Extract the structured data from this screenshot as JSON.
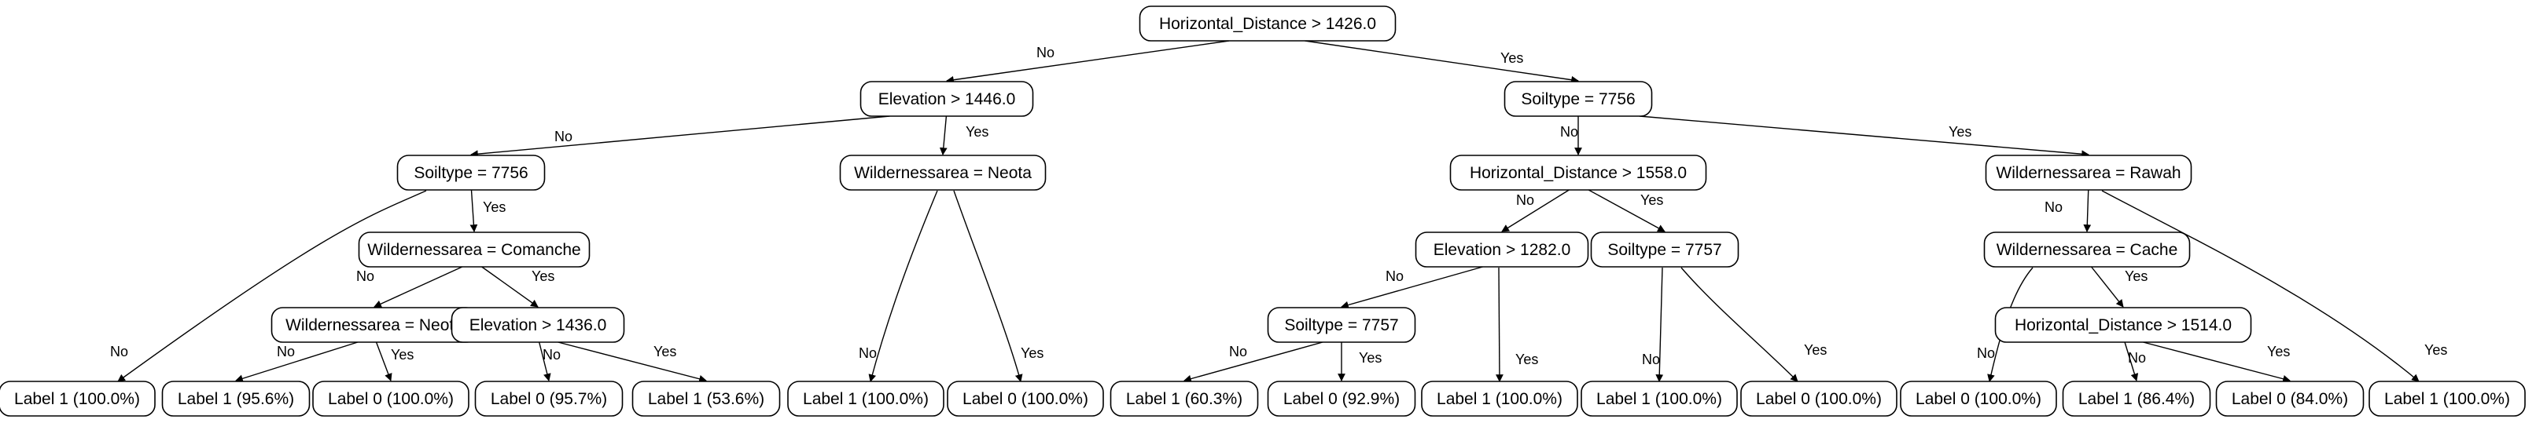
{
  "diagram": {
    "type": "decision-tree",
    "nodes": {
      "root": "Horizontal_Distance > 1426.0",
      "n_elev_1446": "Elevation > 1446.0",
      "n_soil_7756_a": "Soiltype = 7756",
      "n_wild_comanche": "Wildernessarea = Comanche",
      "n_wild_neota_a": "Wildernessarea = Neota",
      "n_elev_1436": "Elevation > 1436.0",
      "n_wild_neota_b": "Wildernessarea = Neota",
      "n_soil_7756_b": "Soiltype = 7756",
      "n_hdist_1558": "Horizontal_Distance > 1558.0",
      "n_elev_1282": "Elevation > 1282.0",
      "n_soil_7757_a": "Soiltype = 7757",
      "n_soil_7757_b": "Soiltype = 7757",
      "n_wild_rawah": "Wildernessarea = Rawah",
      "n_wild_cache": "Wildernessarea = Cache",
      "n_hdist_1514": "Horizontal_Distance > 1514.0",
      "leaf1": "Label 1 (100.0%)",
      "leaf2": "Label 1 (95.6%)",
      "leaf3": "Label 0 (100.0%)",
      "leaf4": "Label 0 (95.7%)",
      "leaf5": "Label 1 (53.6%)",
      "leaf6": "Label 1 (100.0%)",
      "leaf7": "Label 0 (100.0%)",
      "leaf8": "Label 1 (60.3%)",
      "leaf9": "Label 0 (92.9%)",
      "leaf10": "Label 1 (100.0%)",
      "leaf11": "Label 1 (100.0%)",
      "leaf12": "Label 0 (100.0%)",
      "leaf13": "Label 0 (100.0%)",
      "leaf14": "Label 1 (86.4%)",
      "leaf15": "Label 0 (84.0%)",
      "leaf16": "Label 1 (100.0%)"
    },
    "edge_labels": {
      "no": "No",
      "yes": "Yes"
    },
    "edges": [
      {
        "from": "root",
        "to": "n_elev_1446",
        "label": "No"
      },
      {
        "from": "root",
        "to": "n_soil_7756_b",
        "label": "Yes"
      },
      {
        "from": "n_elev_1446",
        "to": "n_soil_7756_a",
        "label": "No"
      },
      {
        "from": "n_elev_1446",
        "to": "n_wild_neota_b",
        "label": "Yes"
      },
      {
        "from": "n_soil_7756_a",
        "to": "leaf1",
        "label": "No"
      },
      {
        "from": "n_soil_7756_a",
        "to": "n_wild_comanche",
        "label": "Yes"
      },
      {
        "from": "n_wild_comanche",
        "to": "n_wild_neota_a",
        "label": "No"
      },
      {
        "from": "n_wild_comanche",
        "to": "n_elev_1436",
        "label": "Yes"
      },
      {
        "from": "n_wild_neota_a",
        "to": "leaf2",
        "label": "No"
      },
      {
        "from": "n_wild_neota_a",
        "to": "leaf3",
        "label": "Yes"
      },
      {
        "from": "n_elev_1436",
        "to": "leaf4",
        "label": "No"
      },
      {
        "from": "n_elev_1436",
        "to": "leaf5",
        "label": "Yes"
      },
      {
        "from": "n_wild_neota_b",
        "to": "leaf6",
        "label": "No"
      },
      {
        "from": "n_wild_neota_b",
        "to": "leaf7",
        "label": "Yes"
      },
      {
        "from": "n_soil_7756_b",
        "to": "n_hdist_1558",
        "label": "No"
      },
      {
        "from": "n_soil_7756_b",
        "to": "n_wild_rawah",
        "label": "Yes"
      },
      {
        "from": "n_hdist_1558",
        "to": "n_elev_1282",
        "label": "No"
      },
      {
        "from": "n_hdist_1558",
        "to": "n_soil_7757_b",
        "label": "Yes"
      },
      {
        "from": "n_elev_1282",
        "to": "n_soil_7757_a",
        "label": "No"
      },
      {
        "from": "n_elev_1282",
        "to": "leaf10",
        "label": "Yes"
      },
      {
        "from": "n_soil_7757_a",
        "to": "leaf8",
        "label": "No"
      },
      {
        "from": "n_soil_7757_a",
        "to": "leaf9",
        "label": "Yes"
      },
      {
        "from": "n_soil_7757_b",
        "to": "leaf11",
        "label": "No"
      },
      {
        "from": "n_soil_7757_b",
        "to": "leaf12",
        "label": "Yes"
      },
      {
        "from": "n_wild_rawah",
        "to": "n_wild_cache",
        "label": "No"
      },
      {
        "from": "n_wild_rawah",
        "to": "leaf16",
        "label": "Yes"
      },
      {
        "from": "n_wild_cache",
        "to": "leaf13",
        "label": "No"
      },
      {
        "from": "n_wild_cache",
        "to": "n_hdist_1514",
        "label": "Yes"
      },
      {
        "from": "n_hdist_1514",
        "to": "leaf14",
        "label": "No"
      },
      {
        "from": "n_hdist_1514",
        "to": "leaf15",
        "label": "Yes"
      }
    ]
  }
}
